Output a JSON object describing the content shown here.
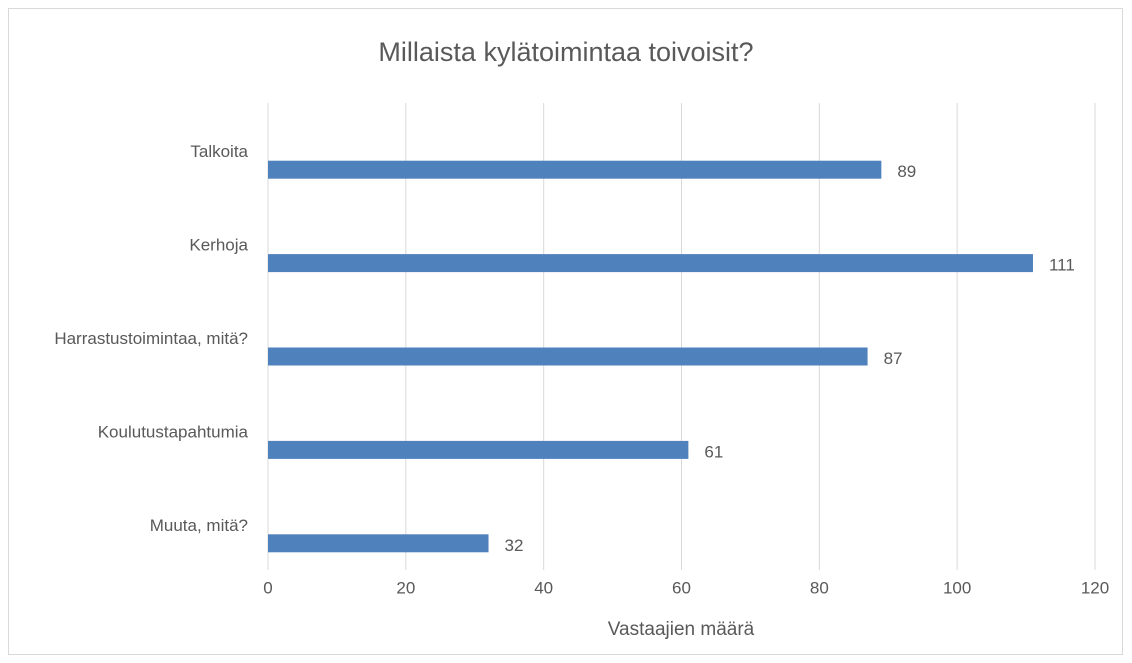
{
  "chart_data": {
    "type": "bar",
    "orientation": "horizontal",
    "title": "Millaista kylätoimintaa toivoisit?",
    "x_label": "Vastaajien määrä",
    "categories": [
      "Talkoita",
      "Kerhoja",
      "Harrastustoimintaa, mitä?",
      "Koulutustapahtumia",
      "Muuta, mitä?"
    ],
    "values": [
      89,
      111,
      87,
      61,
      32
    ],
    "color": "#4f81bd",
    "xlim": [
      0,
      120
    ],
    "xticks": [
      0,
      20,
      40,
      60,
      80,
      100,
      120
    ],
    "grid": true
  }
}
